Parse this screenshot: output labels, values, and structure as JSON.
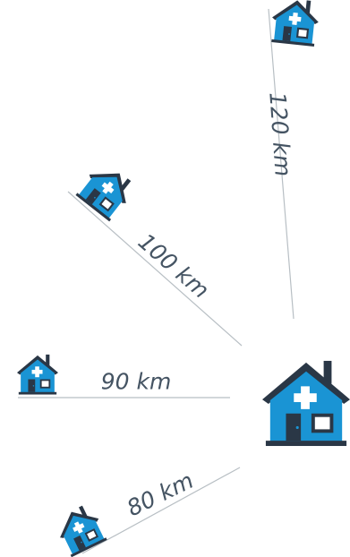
{
  "hub": {
    "icon": "hospital-house-icon",
    "colors": {
      "roof": "#2a3746",
      "wall": "#1a94d4",
      "door": "#2a3746",
      "window": "#ffffff",
      "cross": "#ffffff",
      "base": "#2a3746"
    }
  },
  "routes": [
    {
      "id": "route-120",
      "distance": "120 km",
      "icon": "hospital-house-icon"
    },
    {
      "id": "route-100",
      "distance": "100 km",
      "icon": "hospital-house-icon"
    },
    {
      "id": "route-90",
      "distance": "90 km",
      "icon": "hospital-house-icon"
    },
    {
      "id": "route-80",
      "distance": "80 km",
      "icon": "hospital-house-icon"
    }
  ],
  "colors": {
    "line": "#b8bfc4",
    "label": "#455463"
  }
}
